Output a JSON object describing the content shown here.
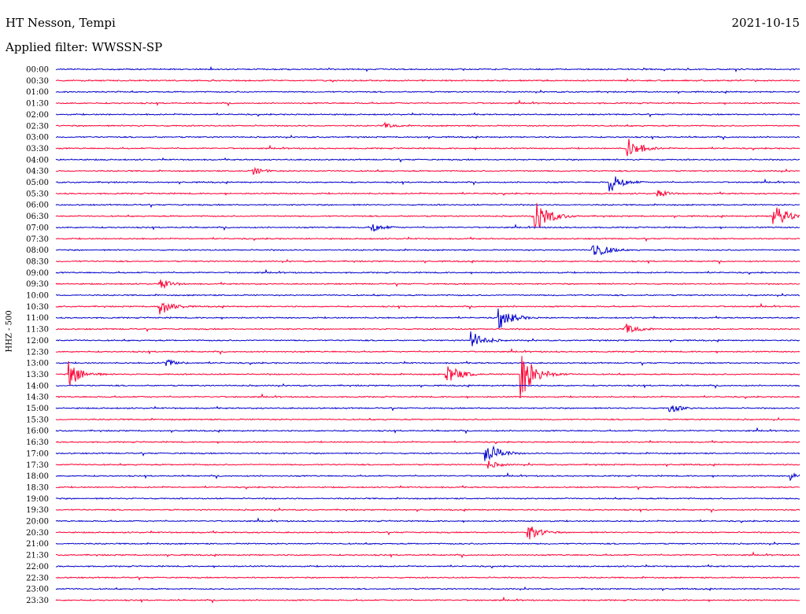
{
  "header": {
    "station": "HT Nesson, Tempi",
    "date": "2021-10-15",
    "filter": "Applied filter: WWSSN-SP"
  },
  "channel_label": "HHZ - 500",
  "colors": {
    "blue": "#0000cc",
    "red": "#ff0033"
  },
  "chart_data": {
    "type": "line",
    "title": "HT Nesson, Tempi",
    "subtitle": "Applied filter: WWSSN-SP",
    "date": "2021-10-15",
    "ylabel": "HHZ - 500",
    "row_labels": [
      "00:00",
      "00:30",
      "01:00",
      "01:30",
      "02:00",
      "02:30",
      "03:00",
      "03:30",
      "04:00",
      "04:30",
      "05:00",
      "05:30",
      "06:00",
      "06:30",
      "07:00",
      "07:30",
      "08:00",
      "08:30",
      "09:00",
      "09:30",
      "10:00",
      "10:30",
      "11:00",
      "11:30",
      "12:00",
      "12:30",
      "13:00",
      "13:30",
      "14:00",
      "14:30",
      "15:00",
      "15:30",
      "16:00",
      "16:30",
      "17:00",
      "17:30",
      "18:00",
      "18:30",
      "19:00",
      "19:30",
      "20:00",
      "20:30",
      "21:00",
      "21:30",
      "22:00",
      "22:30",
      "23:00",
      "23:30"
    ],
    "row_colors": [
      "blue",
      "red"
    ],
    "events": [
      {
        "row": 7,
        "minute": 23.0,
        "amp": 14
      },
      {
        "row": 10,
        "minute": 22.3,
        "amp": 12
      },
      {
        "row": 11,
        "minute": 24.2,
        "amp": 5
      },
      {
        "row": 13,
        "minute": 19.3,
        "amp": 22
      },
      {
        "row": 13,
        "minute": 28.9,
        "amp": 15
      },
      {
        "row": 16,
        "minute": 21.6,
        "amp": 12
      },
      {
        "row": 14,
        "minute": 12.7,
        "amp": 6
      },
      {
        "row": 21,
        "minute": 4.1,
        "amp": 12
      },
      {
        "row": 19,
        "minute": 4.2,
        "amp": 6
      },
      {
        "row": 22,
        "minute": 17.8,
        "amp": 15
      },
      {
        "row": 23,
        "minute": 22.9,
        "amp": 8
      },
      {
        "row": 24,
        "minute": 16.7,
        "amp": 12
      },
      {
        "row": 26,
        "minute": 4.3,
        "amp": 6
      },
      {
        "row": 27,
        "minute": 0.5,
        "amp": 15
      },
      {
        "row": 27,
        "minute": 15.7,
        "amp": 14
      },
      {
        "row": 27,
        "minute": 18.7,
        "amp": 30
      },
      {
        "row": 34,
        "minute": 17.3,
        "amp": 15
      },
      {
        "row": 36,
        "minute": 29.6,
        "amp": 7
      },
      {
        "row": 41,
        "minute": 19.0,
        "amp": 10
      },
      {
        "row": 35,
        "minute": 17.4,
        "amp": 5
      },
      {
        "row": 5,
        "minute": 13.2,
        "amp": 4
      },
      {
        "row": 9,
        "minute": 7.9,
        "amp": 5
      },
      {
        "row": 30,
        "minute": 24.7,
        "amp": 6
      }
    ]
  }
}
